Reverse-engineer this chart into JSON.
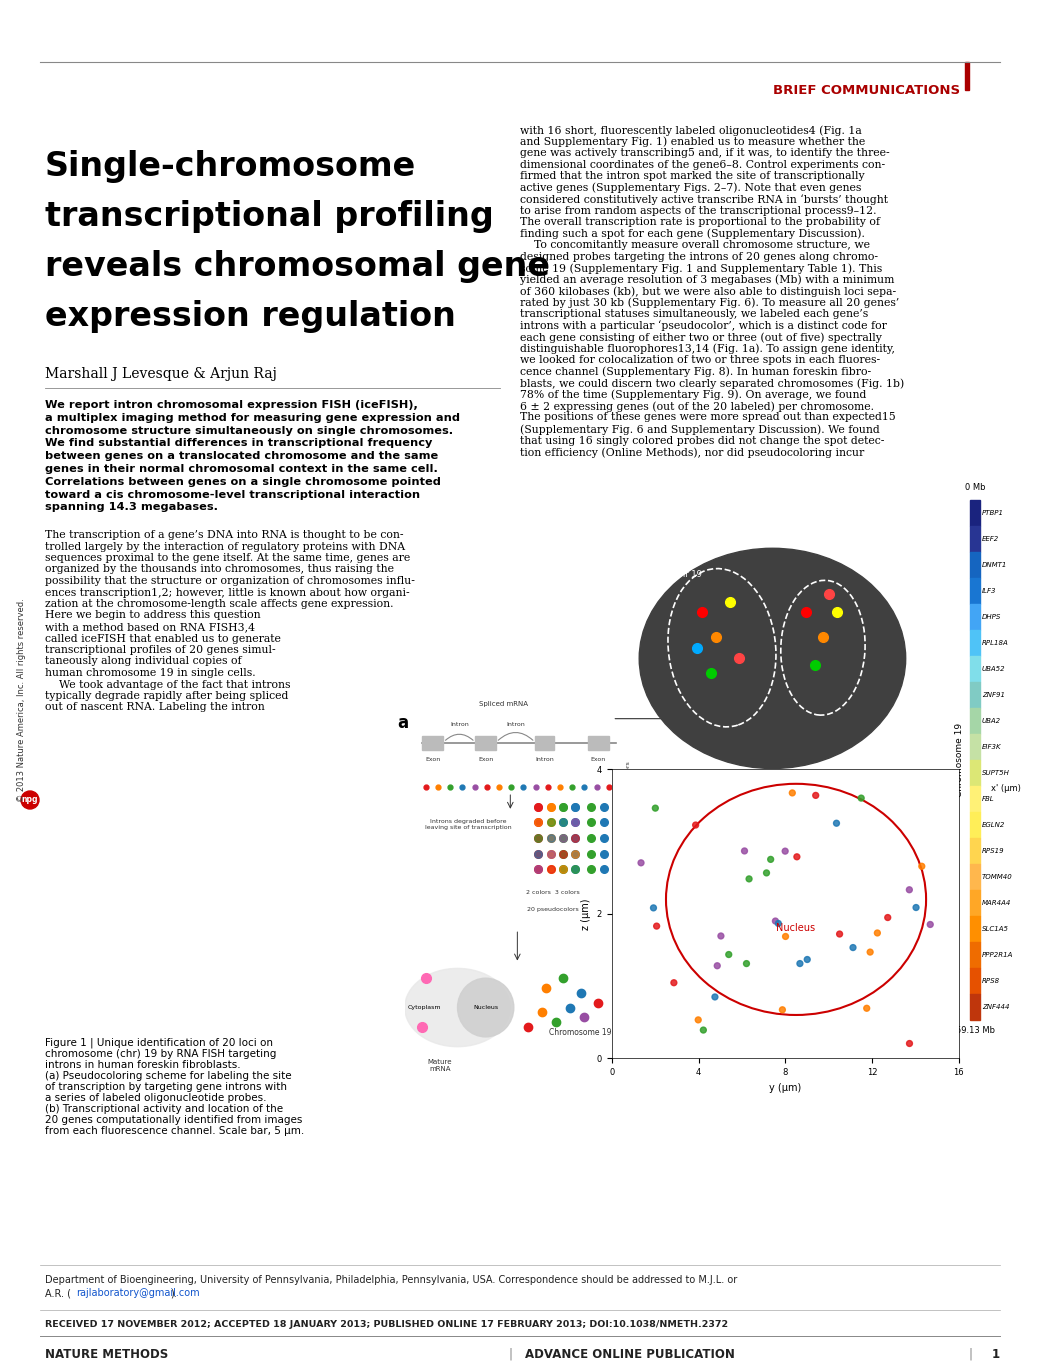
{
  "background_color": "#ffffff",
  "header_line_color": "#666666",
  "brief_comm_color": "#aa0000",
  "brief_comm_text": "BRIEF COMMUNICATIONS",
  "title_lines": [
    "Single-chromosome",
    "transcriptional profiling",
    "reveals chromosomal gene",
    "expression regulation"
  ],
  "authors": "Marshall J Levesque & Arjun Raj",
  "abstract_lines": [
    "We report intron chromosomal expression FISH (iceFISH),",
    "a multiplex imaging method for measuring gene expression and",
    "chromosome structure simultaneously on single chromosomes.",
    "We find substantial differences in transcriptional frequency",
    "between genes on a translocated chromosome and the same",
    "genes in their normal chromosomal context in the same cell.",
    "Correlations between genes on a single chromosome pointed",
    "toward a cis chromosome-level transcriptional interaction",
    "spanning 14.3 megabases."
  ],
  "col1_body_lines": [
    "The transcription of a gene’s DNA into RNA is thought to be con-",
    "trolled largely by the interaction of regulatory proteins with DNA",
    "sequences proximal to the gene itself. At the same time, genes are",
    "organized by the thousands into chromosomes, thus raising the",
    "possibility that the structure or organization of chromosomes influ-",
    "ences transcription1,2; however, little is known about how organi-",
    "zation at the chromosome-length scale affects gene expression.",
    "Here we begin to address this question",
    "with a method based on RNA FISH3,4",
    "called iceFISH that enabled us to generate",
    "transcriptional profiles of 20 genes simul-",
    "taneously along individual copies of",
    "human chromosome 19 in single cells.",
    "    We took advantage of the fact that introns",
    "typically degrade rapidly after being spliced",
    "out of nascent RNA. Labeling the intron"
  ],
  "col2_body_lines": [
    "with 16 short, fluorescently labeled oligonucleotides4 (Fig. 1a",
    "and Supplementary Fig. 1) enabled us to measure whether the",
    "gene was actively transcribing5 and, if it was, to identify the three-",
    "dimensional coordinates of the gene6–8. Control experiments con-",
    "firmed that the intron spot marked the site of transcriptionally",
    "active genes (Supplementary Figs. 2–7). Note that even genes",
    "considered constitutively active transcribe RNA in ‘bursts’ thought",
    "to arise from random aspects of the transcriptional process9–12.",
    "The overall transcription rate is proportional to the probability of",
    "finding such a spot for each gene (Supplementary Discussion).",
    "    To concomitantly measure overall chromosome structure, we",
    "designed probes targeting the introns of 20 genes along chromo-",
    "some 19 (Supplementary Fig. 1 and Supplementary Table 1). This",
    "yielded an average resolution of 3 megabases (Mb) with a minimum",
    "of 360 kilobases (kb), but we were also able to distinguish loci sepa-",
    "rated by just 30 kb (Supplementary Fig. 6). To measure all 20 genes’",
    "transcriptional statuses simultaneously, we labeled each gene’s",
    "introns with a particular ‘pseudocolor’, which is a distinct code for",
    "each gene consisting of either two or three (out of five) spectrally",
    "distinguishable fluorophores13,14 (Fig. 1a). To assign gene identity,",
    "we looked for colocalization of two or three spots in each fluores-",
    "cence channel (Supplementary Fig. 8). In human foreskin fibro-",
    "blasts, we could discern two clearly separated chromosomes (Fig. 1b)",
    "78% of the time (Supplementary Fig. 9). On average, we found",
    "6 ± 2 expressing genes (out of the 20 labeled) per chromosome.",
    "The positions of these genes were more spread out than expected15",
    "(Supplementary Fig. 6 and Supplementary Discussion). We found",
    "that using 16 singly colored probes did not change the spot detec-",
    "tion efficiency (Online Methods), nor did pseudocoloring incur"
  ],
  "fig_caption_lines": [
    "Figure 1 | Unique identification of 20 loci on",
    "chromosome (chr) 19 by RNA FISH targeting",
    "introns in human foreskin fibroblasts.",
    "(a) Pseudocoloring scheme for labeling the site",
    "of transcription by targeting gene introns with",
    "a series of labeled oligonucleotide probes.",
    "(b) Transcriptional activity and location of the",
    "20 genes computationally identified from images",
    "from each fluorescence channel. Scale bar, 5 μm."
  ],
  "copyright_text": "© 2013 Nature America, Inc. All rights reserved.",
  "footer_dept1": "Department of Bioengineering, University of Pennsylvania, Philadelphia, Pennsylvania, USA. Correspondence should be addressed to M.J.L. or",
  "footer_dept2": "A.R. (rajlaboratory@gmail.com).",
  "footer_email": "rajlaboratory@gmail.com",
  "footer_received": "RECEIVED 17 NOVEMBER 2012; ACCEPTED 18 JANUARY 2013; PUBLISHED ONLINE 17 FEBRUARY 2013; DOI:10.1038/NMETH.2372",
  "footer_journal": "NATURE METHODS",
  "footer_sep1": "|",
  "footer_pub": "ADVANCE ONLINE PUBLICATION",
  "footer_sep2": "|",
  "footer_page": "1",
  "sidebar_genes": [
    "PTBP1",
    "EEF2",
    "DNMT1",
    "ILF3",
    "DHPS",
    "RPL18A",
    "UBA52",
    "ZNF91",
    "UBA2",
    "EIF3K",
    "SUPT5H",
    "FBL",
    "EGLN2",
    "RPS19",
    "TOMM40",
    "MAR4A4",
    "SLC1A5",
    "PPP2R1A",
    "RPS8",
    "ZNF444"
  ],
  "sidebar_colors": [
    "#1a237e",
    "#283593",
    "#1565c0",
    "#1976d2",
    "#42a5f5",
    "#4fc3f7",
    "#80deea",
    "#80cbc4",
    "#a5d6a7",
    "#c5e1a5",
    "#dce775",
    "#fff176",
    "#ffee58",
    "#ffd54f",
    "#ffb74d",
    "#ffa726",
    "#ff8f00",
    "#ef6c00",
    "#e65100",
    "#bf360c"
  ],
  "sidebar_mb_top": "0 Mb",
  "sidebar_mb_bottom": "59.13 Mb",
  "chr19_rot_label": "Chromosome 19"
}
